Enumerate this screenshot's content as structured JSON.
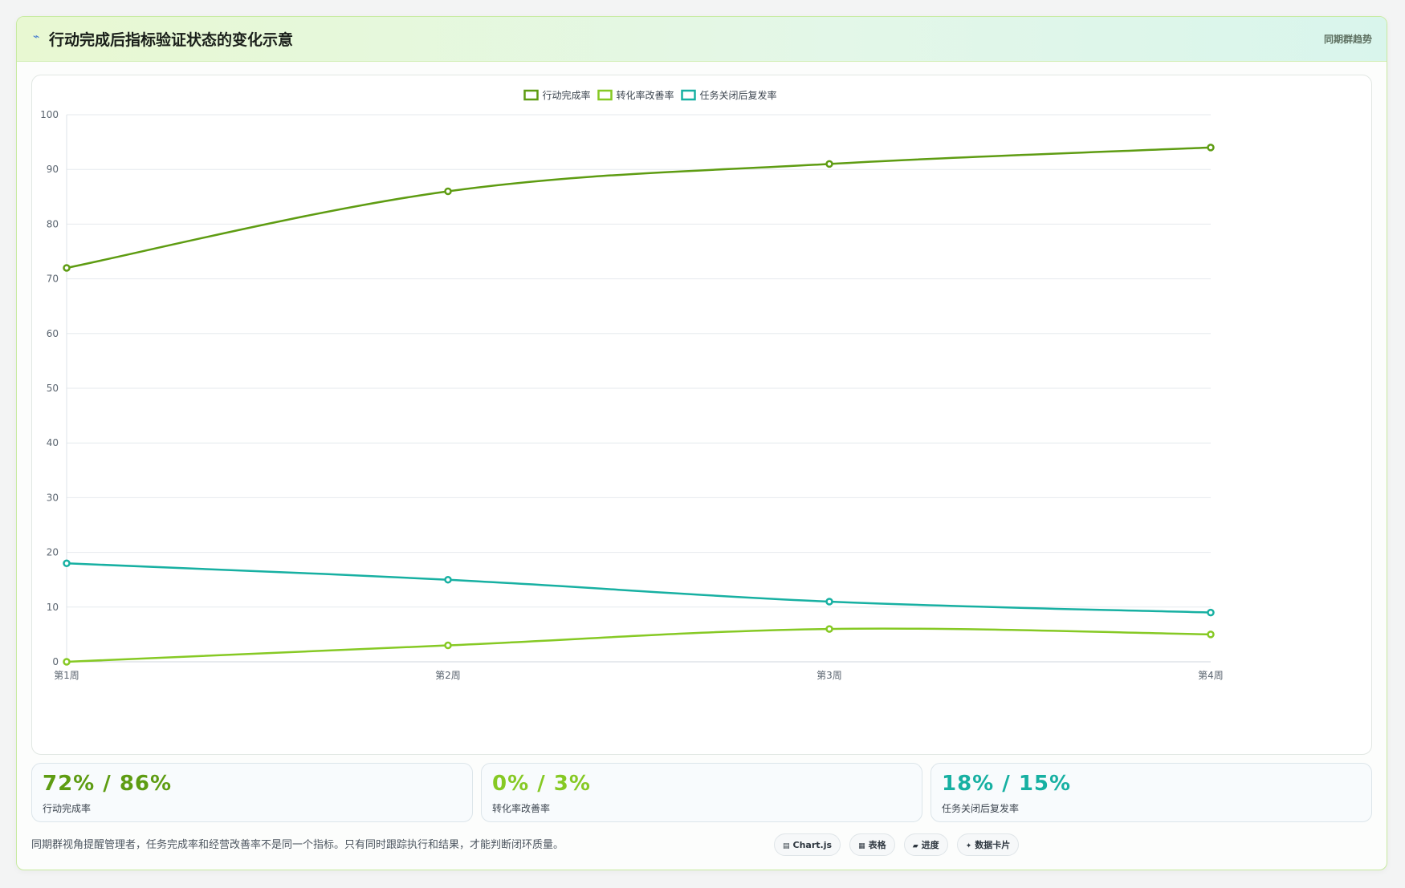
{
  "header": {
    "icon": "pulse-icon",
    "title": "行动完成后指标验证状态的变化示意",
    "right_label": "同期群趋势"
  },
  "chart_data": {
    "type": "line",
    "categories": [
      "第1周",
      "第2周",
      "第3周",
      "第4周"
    ],
    "ylim": [
      0,
      100
    ],
    "yticks": [
      0,
      10,
      20,
      30,
      40,
      50,
      60,
      70,
      80,
      90,
      100
    ],
    "grid": true,
    "legend_position": "top-center",
    "smooth": true,
    "series": [
      {
        "name": "行动完成率",
        "color": "#5e9c12",
        "values": [
          72,
          86,
          91,
          94
        ]
      },
      {
        "name": "转化率改善率",
        "color": "#86c924",
        "values": [
          0,
          3,
          6,
          5
        ]
      },
      {
        "name": "任务关闭后复发率",
        "color": "#17b0a2",
        "values": [
          18,
          15,
          11,
          9
        ]
      }
    ]
  },
  "stats": [
    {
      "value": "72% / 86%",
      "label": "行动完成率",
      "color": "#5e9c12"
    },
    {
      "value": "0% / 3%",
      "label": "转化率改善率",
      "color": "#86c924"
    },
    {
      "value": "18% / 15%",
      "label": "任务关闭后复发率",
      "color": "#17b0a2"
    }
  ],
  "footer": {
    "note": "同期群视角提醒管理者，任务完成率和经营改善率不是同一个指标。只有同时跟踪执行和结果，才能判断闭环质量。",
    "chips": [
      {
        "icon": "chart-icon",
        "glyph": "▤",
        "label": "Chart.js"
      },
      {
        "icon": "table-icon",
        "glyph": "▦",
        "label": "表格"
      },
      {
        "icon": "progress-icon",
        "glyph": "▰",
        "label": "进度"
      },
      {
        "icon": "data-card-icon",
        "glyph": "✦",
        "label": "数据卡片"
      }
    ]
  }
}
